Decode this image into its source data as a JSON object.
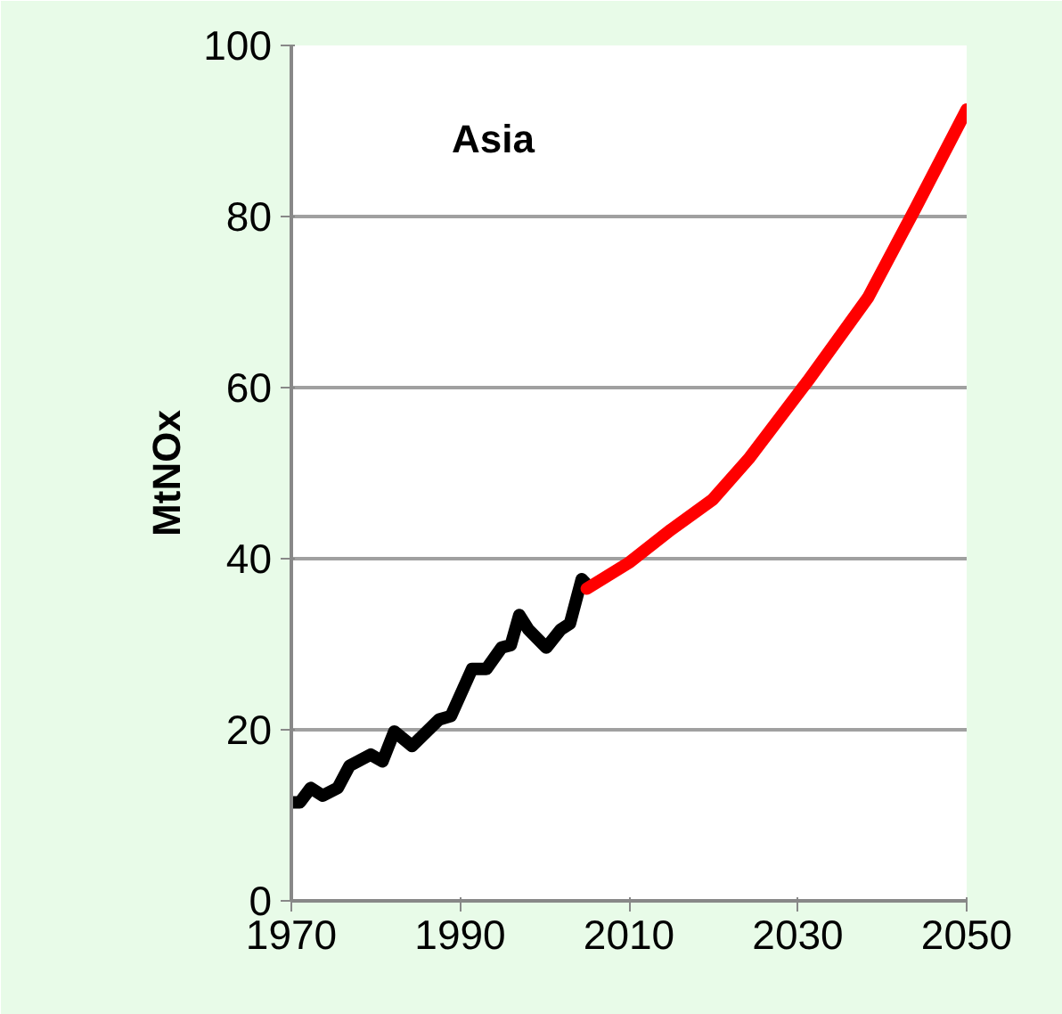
{
  "chart_data": {
    "type": "line",
    "title": "Asia",
    "ylabel": "MtNOx",
    "xlim": [
      1970,
      2050
    ],
    "xticks": [
      1970,
      1990,
      2010,
      2030,
      2050
    ],
    "ylim": [
      0,
      100
    ],
    "yticks": [
      0,
      20,
      40,
      60,
      80,
      100
    ],
    "grid": "y",
    "marker": "none",
    "line_style": "solid",
    "series": [
      {
        "color": "#000000",
        "x": [
          1970.2,
          1971,
          1972.3,
          1973.7,
          1975.5,
          1976.9,
          1979.4,
          1980.8,
          1982.2,
          1984.3,
          1987.5,
          1988.9,
          1991.4,
          1993.1,
          1994.9,
          1996.0,
          1997.0,
          1998.1,
          2000.2,
          2001.9,
          2003.0,
          2004.4,
          2005
        ],
        "values": [
          11.5,
          11.5,
          13.2,
          12.3,
          13.2,
          15.8,
          17.1,
          16.3,
          19.8,
          18.1,
          21.2,
          21.6,
          27.1,
          27.1,
          29.6,
          29.9,
          33.4,
          31.7,
          29.6,
          31.7,
          32.4,
          37.6,
          37
        ]
      },
      {
        "color": "#ff0000",
        "x": [
          2005,
          2010.1,
          2015,
          2019.9,
          2024.2,
          2031.2,
          2038.3,
          2043.9,
          2050
        ],
        "values": [
          36.5,
          39.6,
          43.4,
          46.9,
          51.7,
          60.8,
          70.5,
          80.9,
          92.5
        ]
      }
    ]
  }
}
